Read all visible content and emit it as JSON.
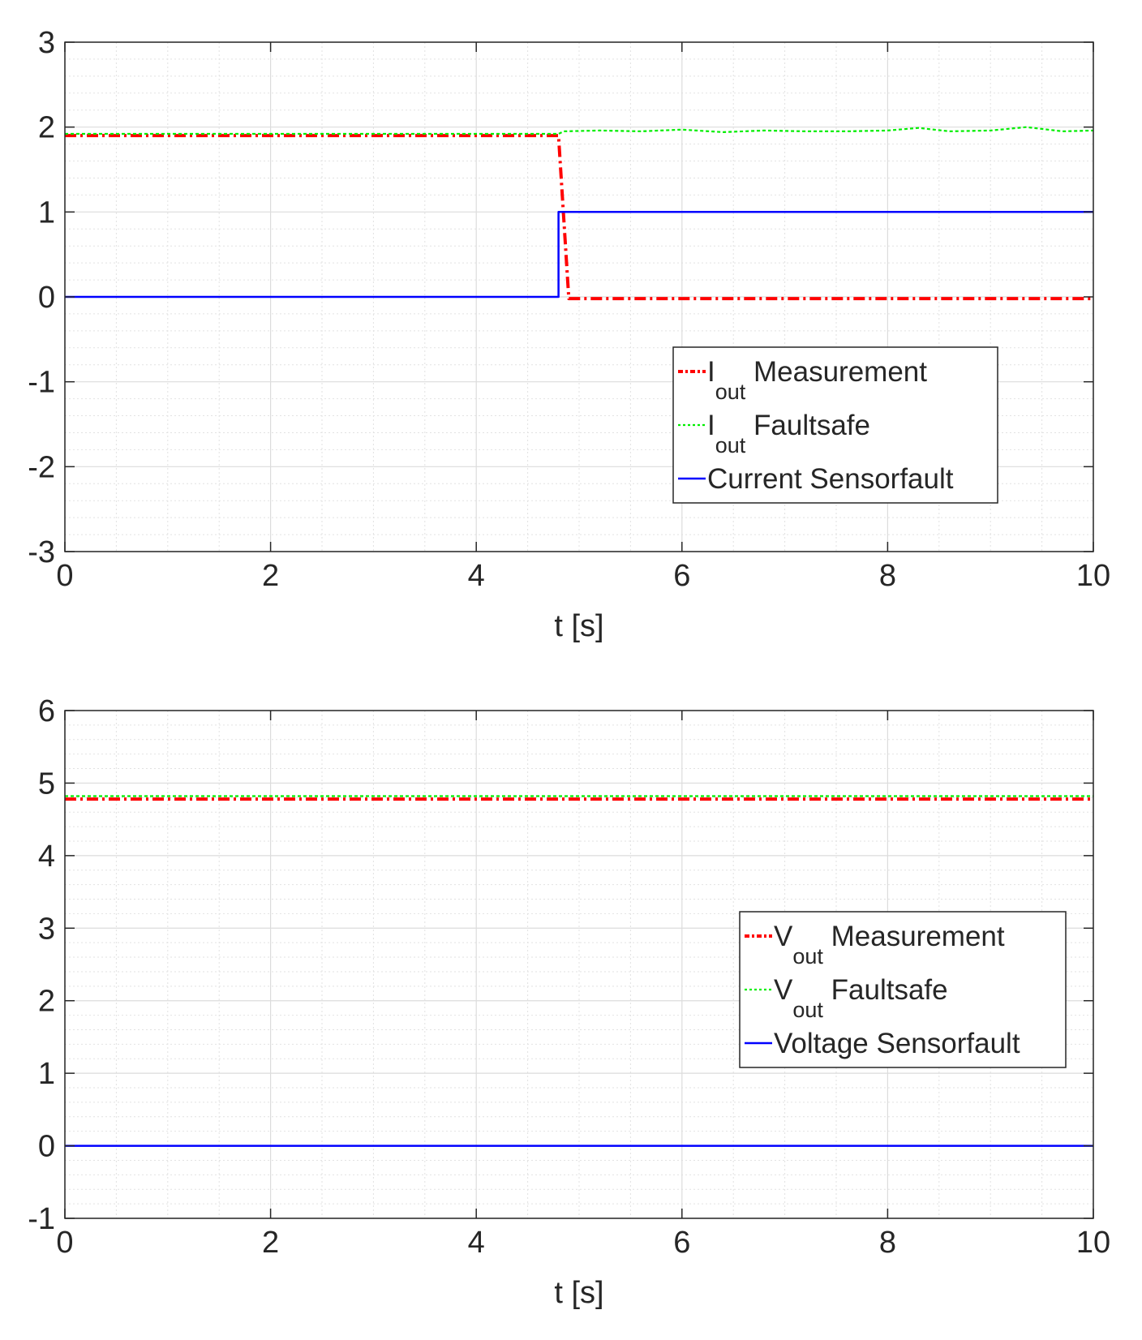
{
  "chart_data": [
    {
      "type": "line",
      "title": "",
      "xlabel": "t [s]",
      "ylabel": "",
      "xlim": [
        0,
        10
      ],
      "ylim": [
        -3,
        3
      ],
      "xticks": [
        0,
        2,
        4,
        6,
        8,
        10
      ],
      "yticks": [
        -3,
        -2,
        -1,
        0,
        1,
        2,
        3
      ],
      "xtick_labels": [
        "0",
        "2",
        "4",
        "6",
        "8",
        "10"
      ],
      "ytick_labels": [
        "-3",
        "-2",
        "-1",
        "0",
        "1",
        "2",
        "3"
      ],
      "grid": true,
      "minor_grid": true,
      "legend_position": "center-right",
      "series": [
        {
          "name": "I_out Measurement",
          "label_main": "I",
          "label_sub": "out",
          "label_rest": " Measurement",
          "color": "#ff0000",
          "style": "dashdot",
          "x": [
            0,
            4.8,
            4.9,
            10
          ],
          "y": [
            1.9,
            1.9,
            -0.02,
            -0.02
          ]
        },
        {
          "name": "I_out Faultsafe",
          "label_main": "I",
          "label_sub": "out",
          "label_rest": " Faultsafe",
          "color": "#00ee00",
          "style": "dotted",
          "x": [
            0,
            4.8,
            4.85,
            5.2,
            5.6,
            6.0,
            6.4,
            6.8,
            7.2,
            7.6,
            8.0,
            8.3,
            8.6,
            9.0,
            9.35,
            9.7,
            10
          ],
          "y": [
            1.92,
            1.92,
            1.95,
            1.96,
            1.95,
            1.97,
            1.94,
            1.96,
            1.95,
            1.95,
            1.96,
            1.99,
            1.95,
            1.96,
            2.0,
            1.95,
            1.96
          ]
        },
        {
          "name": "Current Sensorfault",
          "label_main": "Current Sensorfault",
          "label_sub": "",
          "label_rest": "",
          "color": "#0000ff",
          "style": "solid",
          "x": [
            0,
            4.8,
            4.8,
            10
          ],
          "y": [
            0,
            0,
            1,
            1
          ]
        }
      ]
    },
    {
      "type": "line",
      "title": "",
      "xlabel": "t [s]",
      "ylabel": "",
      "xlim": [
        0,
        10
      ],
      "ylim": [
        -1,
        6
      ],
      "xticks": [
        0,
        2,
        4,
        6,
        8,
        10
      ],
      "yticks": [
        -1,
        0,
        1,
        2,
        3,
        4,
        5,
        6
      ],
      "xtick_labels": [
        "0",
        "2",
        "4",
        "6",
        "8",
        "10"
      ],
      "ytick_labels": [
        "-1",
        "0",
        "1",
        "2",
        "3",
        "4",
        "5",
        "6"
      ],
      "grid": true,
      "minor_grid": true,
      "legend_position": "center-right",
      "series": [
        {
          "name": "V_out Measurement",
          "label_main": "V",
          "label_sub": "out",
          "label_rest": " Measurement",
          "color": "#ff0000",
          "style": "dashdot",
          "x": [
            0,
            10
          ],
          "y": [
            4.78,
            4.78
          ]
        },
        {
          "name": "V_out Faultsafe",
          "label_main": "V",
          "label_sub": "out",
          "label_rest": " Faultsafe",
          "color": "#00ee00",
          "style": "dotted",
          "x": [
            0,
            10
          ],
          "y": [
            4.82,
            4.82
          ]
        },
        {
          "name": "Voltage Sensorfault",
          "label_main": "Voltage Sensorfault",
          "label_sub": "",
          "label_rest": "",
          "color": "#0000ff",
          "style": "solid",
          "x": [
            0,
            10
          ],
          "y": [
            0,
            0
          ]
        }
      ]
    }
  ]
}
